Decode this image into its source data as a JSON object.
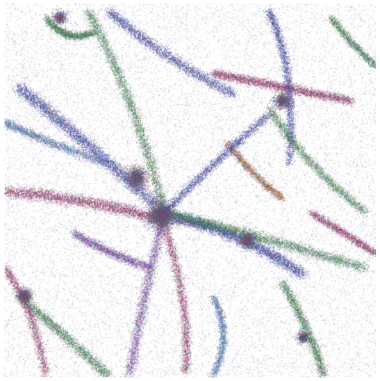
{
  "scene": {
    "subject": "particle-filament-field",
    "background_color": "#ffffff",
    "palette": [
      "#2a3fb0",
      "#2f8f3a",
      "#a4275f",
      "#7a3fa8",
      "#b0662a",
      "#3d7fbf"
    ]
  }
}
